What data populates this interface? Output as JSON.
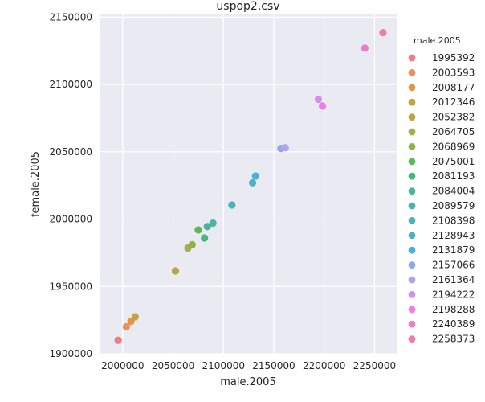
{
  "chart_data": {
    "type": "scatter",
    "title": "uspop2.csv",
    "xlabel": "male.2005",
    "ylabel": "female.2005",
    "xlim": [
      1977000,
      2272000
    ],
    "ylim": [
      1900000,
      2152000
    ],
    "xticks": [
      2000000,
      2050000,
      2100000,
      2150000,
      2200000,
      2250000
    ],
    "yticks": [
      1900000,
      1950000,
      2000000,
      2050000,
      2100000,
      2150000
    ],
    "grid": true,
    "legend": {
      "title": "male.2005",
      "placement": "right"
    },
    "points": [
      {
        "x": 1995392,
        "y": 1910000,
        "label": "1995392",
        "color": "#f07c82"
      },
      {
        "x": 2003593,
        "y": 1920000,
        "label": "2003593",
        "color": "#ee8e5a"
      },
      {
        "x": 2008177,
        "y": 1924000,
        "label": "2008177",
        "color": "#db9849"
      },
      {
        "x": 2012346,
        "y": 1927500,
        "label": "2012346",
        "color": "#c7a146"
      },
      {
        "x": 2052382,
        "y": 1961500,
        "label": "2052382",
        "color": "#b5a744"
      },
      {
        "x": 2064705,
        "y": 1978500,
        "label": "2064705",
        "color": "#a5ae48"
      },
      {
        "x": 2068969,
        "y": 1981000,
        "label": "2068969",
        "color": "#8db449"
      },
      {
        "x": 2075001,
        "y": 1992000,
        "label": "2075001",
        "color": "#5cb957"
      },
      {
        "x": 2081193,
        "y": 1986000,
        "label": "2081193",
        "color": "#46b77f"
      },
      {
        "x": 2084004,
        "y": 1994500,
        "label": "2084004",
        "color": "#49b497"
      },
      {
        "x": 2089579,
        "y": 1997000,
        "label": "2089579",
        "color": "#4ab4a8"
      },
      {
        "x": 2108398,
        "y": 2010500,
        "label": "2108398",
        "color": "#4eb3b7"
      },
      {
        "x": 2128943,
        "y": 2027000,
        "label": "2128943",
        "color": "#50b1c5"
      },
      {
        "x": 2131879,
        "y": 2032000,
        "label": "2131879",
        "color": "#4aaee0"
      },
      {
        "x": 2157066,
        "y": 2052500,
        "label": "2157066",
        "color": "#8ea8f0"
      },
      {
        "x": 2161364,
        "y": 2053000,
        "label": "2161364",
        "color": "#b4a2f1"
      },
      {
        "x": 2194222,
        "y": 2089000,
        "label": "2194222",
        "color": "#d190f0"
      },
      {
        "x": 2198288,
        "y": 2084000,
        "label": "2198288",
        "color": "#ec7eea"
      },
      {
        "x": 2240389,
        "y": 2127000,
        "label": "2240389",
        "color": "#f07cc9"
      },
      {
        "x": 2258373,
        "y": 2138500,
        "label": "2258373",
        "color": "#f07ca9"
      }
    ]
  }
}
